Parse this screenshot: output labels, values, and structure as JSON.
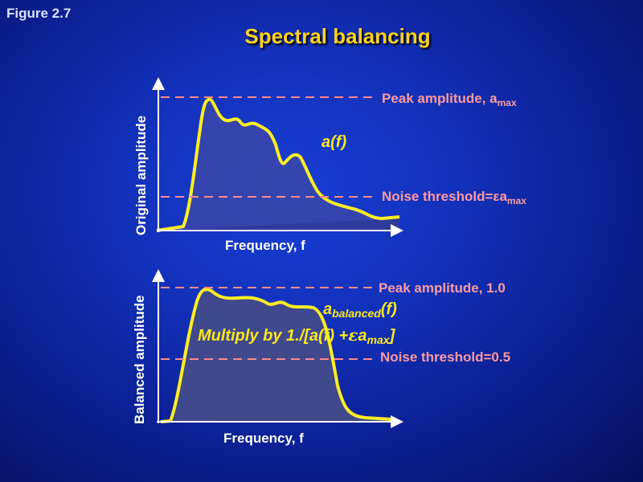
{
  "figure_label": "Figure 2.7",
  "title": "Spectral balancing",
  "top_plot": {
    "ylabel": "Original amplitude",
    "xlabel": "Frequency, f",
    "curve_label": "a(f)",
    "peak_label": "Peak amplitude, a",
    "peak_sub": "max",
    "noise_label": "Noise threshold=εa",
    "noise_sub": "max"
  },
  "bottom_plot": {
    "ylabel": "Balanced  amplitude",
    "xlabel": "Frequency, f",
    "curve_label_main": "a",
    "curve_label_sub": "balanced",
    "curve_label_tail": "(f)",
    "multiply_a": "Multiply by 1./[a(f) +",
    "multiply_eps": "ε",
    "multiply_b": "a",
    "multiply_sub": "max",
    "multiply_c": "]",
    "peak_label": "Peak amplitude, 1.0",
    "noise_label": "Noise threshold=0.5"
  },
  "colors": {
    "curve": "#ffee22",
    "dashed": "#ff8a8a",
    "fill": "#3b47a8",
    "axis": "#ffffff"
  }
}
